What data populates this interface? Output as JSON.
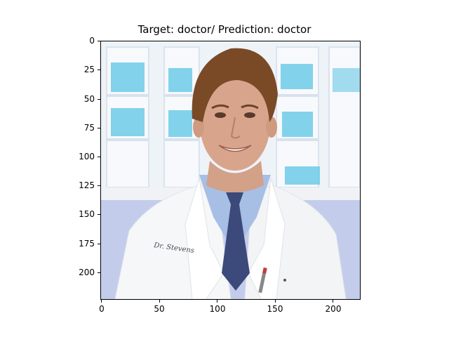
{
  "figure": {
    "title": "Target: doctor/ Prediction: doctor",
    "yticks": [
      "0",
      "25",
      "50",
      "75",
      "100",
      "125",
      "150",
      "175",
      "200"
    ],
    "xticks": [
      "0",
      "50",
      "100",
      "150",
      "200"
    ]
  },
  "image": {
    "name_tag_text": "Dr. Stevens",
    "colors": {
      "cabinet": "#f3f6fb",
      "shelf_bin": "#6dcbe8",
      "wall_lower": "#c3cdeb",
      "coat": "#f6f7f8",
      "shirt": "#a7bfe4",
      "tie": "#3b4a7a",
      "skin": "#d8a58c",
      "hair": "#7a4a26"
    }
  }
}
